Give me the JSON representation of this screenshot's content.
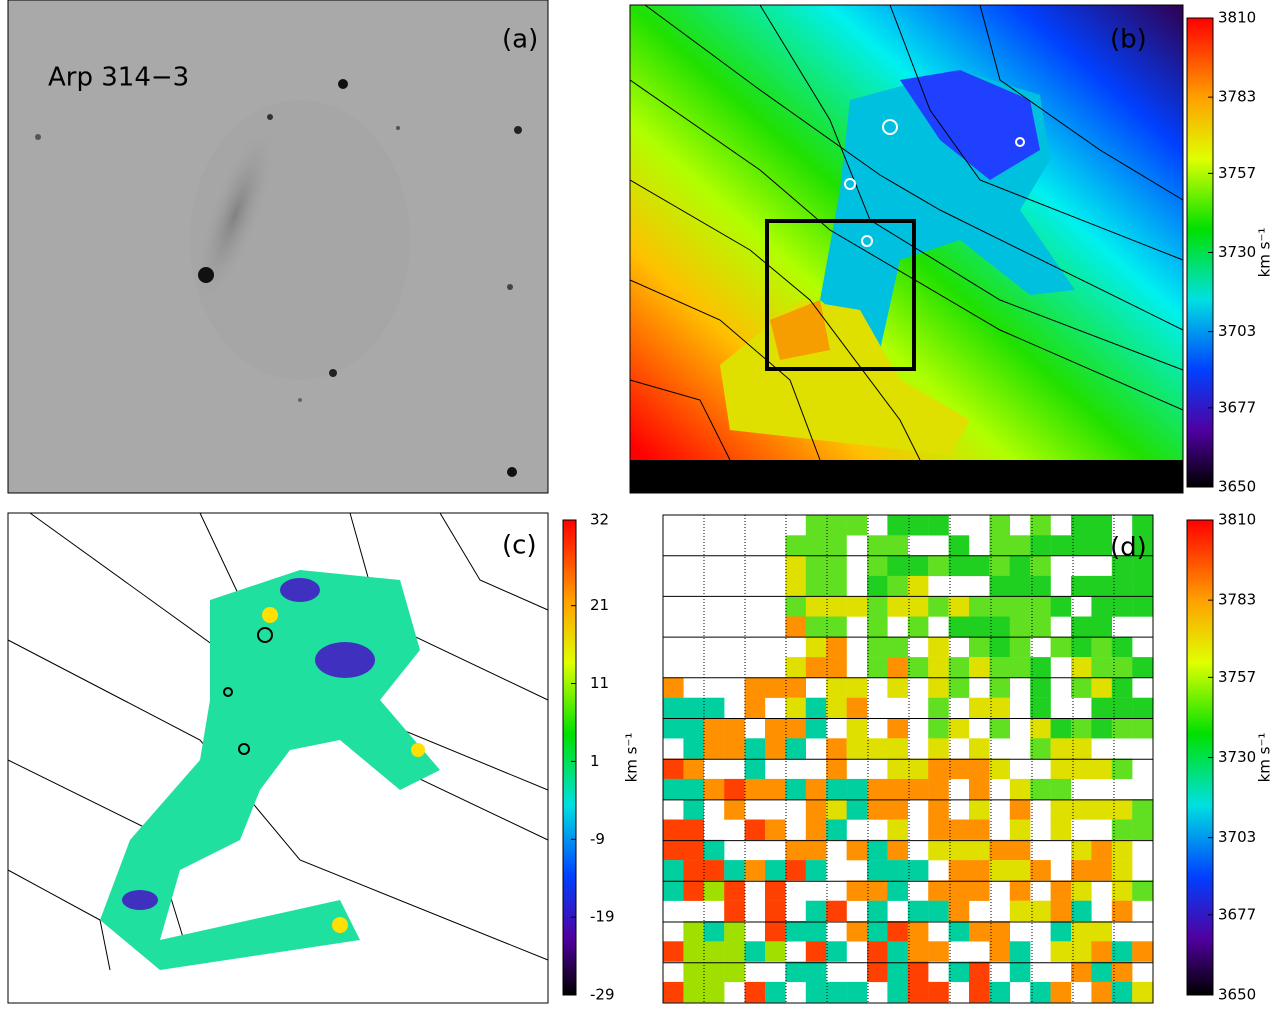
{
  "panels": [
    {
      "label": "(a)",
      "title": "Arp 314−3"
    },
    {
      "label": "(b)",
      "colorbar": {
        "lim": [
          3650,
          3810
        ],
        "ticks": [
          3650,
          3677,
          3703,
          3730,
          3757,
          3783,
          3810
        ],
        "unit": "km s⁻¹"
      }
    },
    {
      "label": "(c)",
      "colorbar": {
        "lim": [
          -29,
          32
        ],
        "ticks": [
          -29,
          -19,
          -9,
          1,
          11,
          21,
          32
        ],
        "unit": "km s⁻¹"
      }
    },
    {
      "label": "(d)",
      "colorbar": {
        "lim": [
          3650,
          3810
        ],
        "ticks": [
          3650,
          3677,
          3703,
          3730,
          3757,
          3783,
          3810
        ],
        "unit": "km s⁻¹"
      }
    }
  ]
}
